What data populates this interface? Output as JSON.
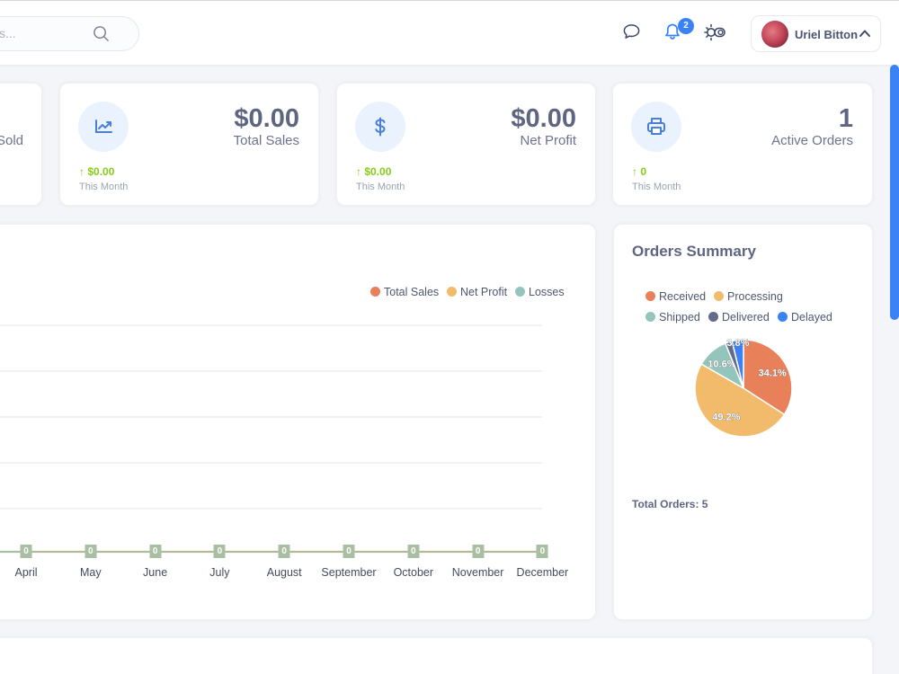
{
  "header": {
    "search_placeholder": "s...",
    "notification_count": "2",
    "user_name": "Uriel Bitton"
  },
  "stats": [
    {
      "label": "Sold",
      "icon": "cart-icon"
    },
    {
      "value": "$0.00",
      "label": "Total Sales",
      "delta": "$0.00",
      "period": "This Month",
      "icon": "trending-up-icon"
    },
    {
      "value": "$0.00",
      "label": "Net Profit",
      "delta": "$0.00",
      "period": "This Month",
      "icon": "dollar-icon"
    },
    {
      "value": "1",
      "label": "Active Orders",
      "delta": "0",
      "period": "This Month",
      "icon": "printer-icon"
    }
  ],
  "sales_chart": {
    "legend": [
      {
        "name": "Total Sales",
        "color": "#e8815a"
      },
      {
        "name": "Net Profit",
        "color": "#f2bb6b"
      },
      {
        "name": "Losses",
        "color": "#94c5bd"
      }
    ]
  },
  "chart_data": [
    {
      "type": "line",
      "categories": [
        "April",
        "May",
        "June",
        "July",
        "August",
        "September",
        "October",
        "November",
        "December"
      ],
      "series": [
        {
          "name": "Total Sales",
          "values": [
            0,
            0,
            0,
            0,
            0,
            0,
            0,
            0,
            0
          ]
        },
        {
          "name": "Net Profit",
          "values": [
            0,
            0,
            0,
            0,
            0,
            0,
            0,
            0,
            0
          ]
        },
        {
          "name": "Losses",
          "values": [
            0,
            0,
            0,
            0,
            0,
            0,
            0,
            0,
            0
          ]
        }
      ],
      "data_labels": [
        "0",
        "0",
        "0",
        "0",
        "0",
        "0",
        "0",
        "0",
        "0"
      ],
      "legend_position": "top-right",
      "grid": true
    },
    {
      "type": "pie",
      "title": "Orders Summary",
      "categories": [
        "Received",
        "Processing",
        "Shipped",
        "Delivered",
        "Delayed"
      ],
      "values": [
        34.1,
        49.2,
        10.6,
        2.3,
        3.8
      ],
      "labels": [
        "34.1%",
        "49.2%",
        "10.6%",
        "",
        "3.8%"
      ],
      "colors": [
        "#e8815a",
        "#f2bb6b",
        "#94c5bd",
        "#646a8a",
        "#3b82f6"
      ],
      "legend_position": "top"
    }
  ],
  "orders_summary": {
    "title": "Orders Summary",
    "legend": [
      "Received",
      "Processing",
      "Shipped",
      "Delivered",
      "Delayed"
    ],
    "total_orders": "Total Orders: 5"
  }
}
